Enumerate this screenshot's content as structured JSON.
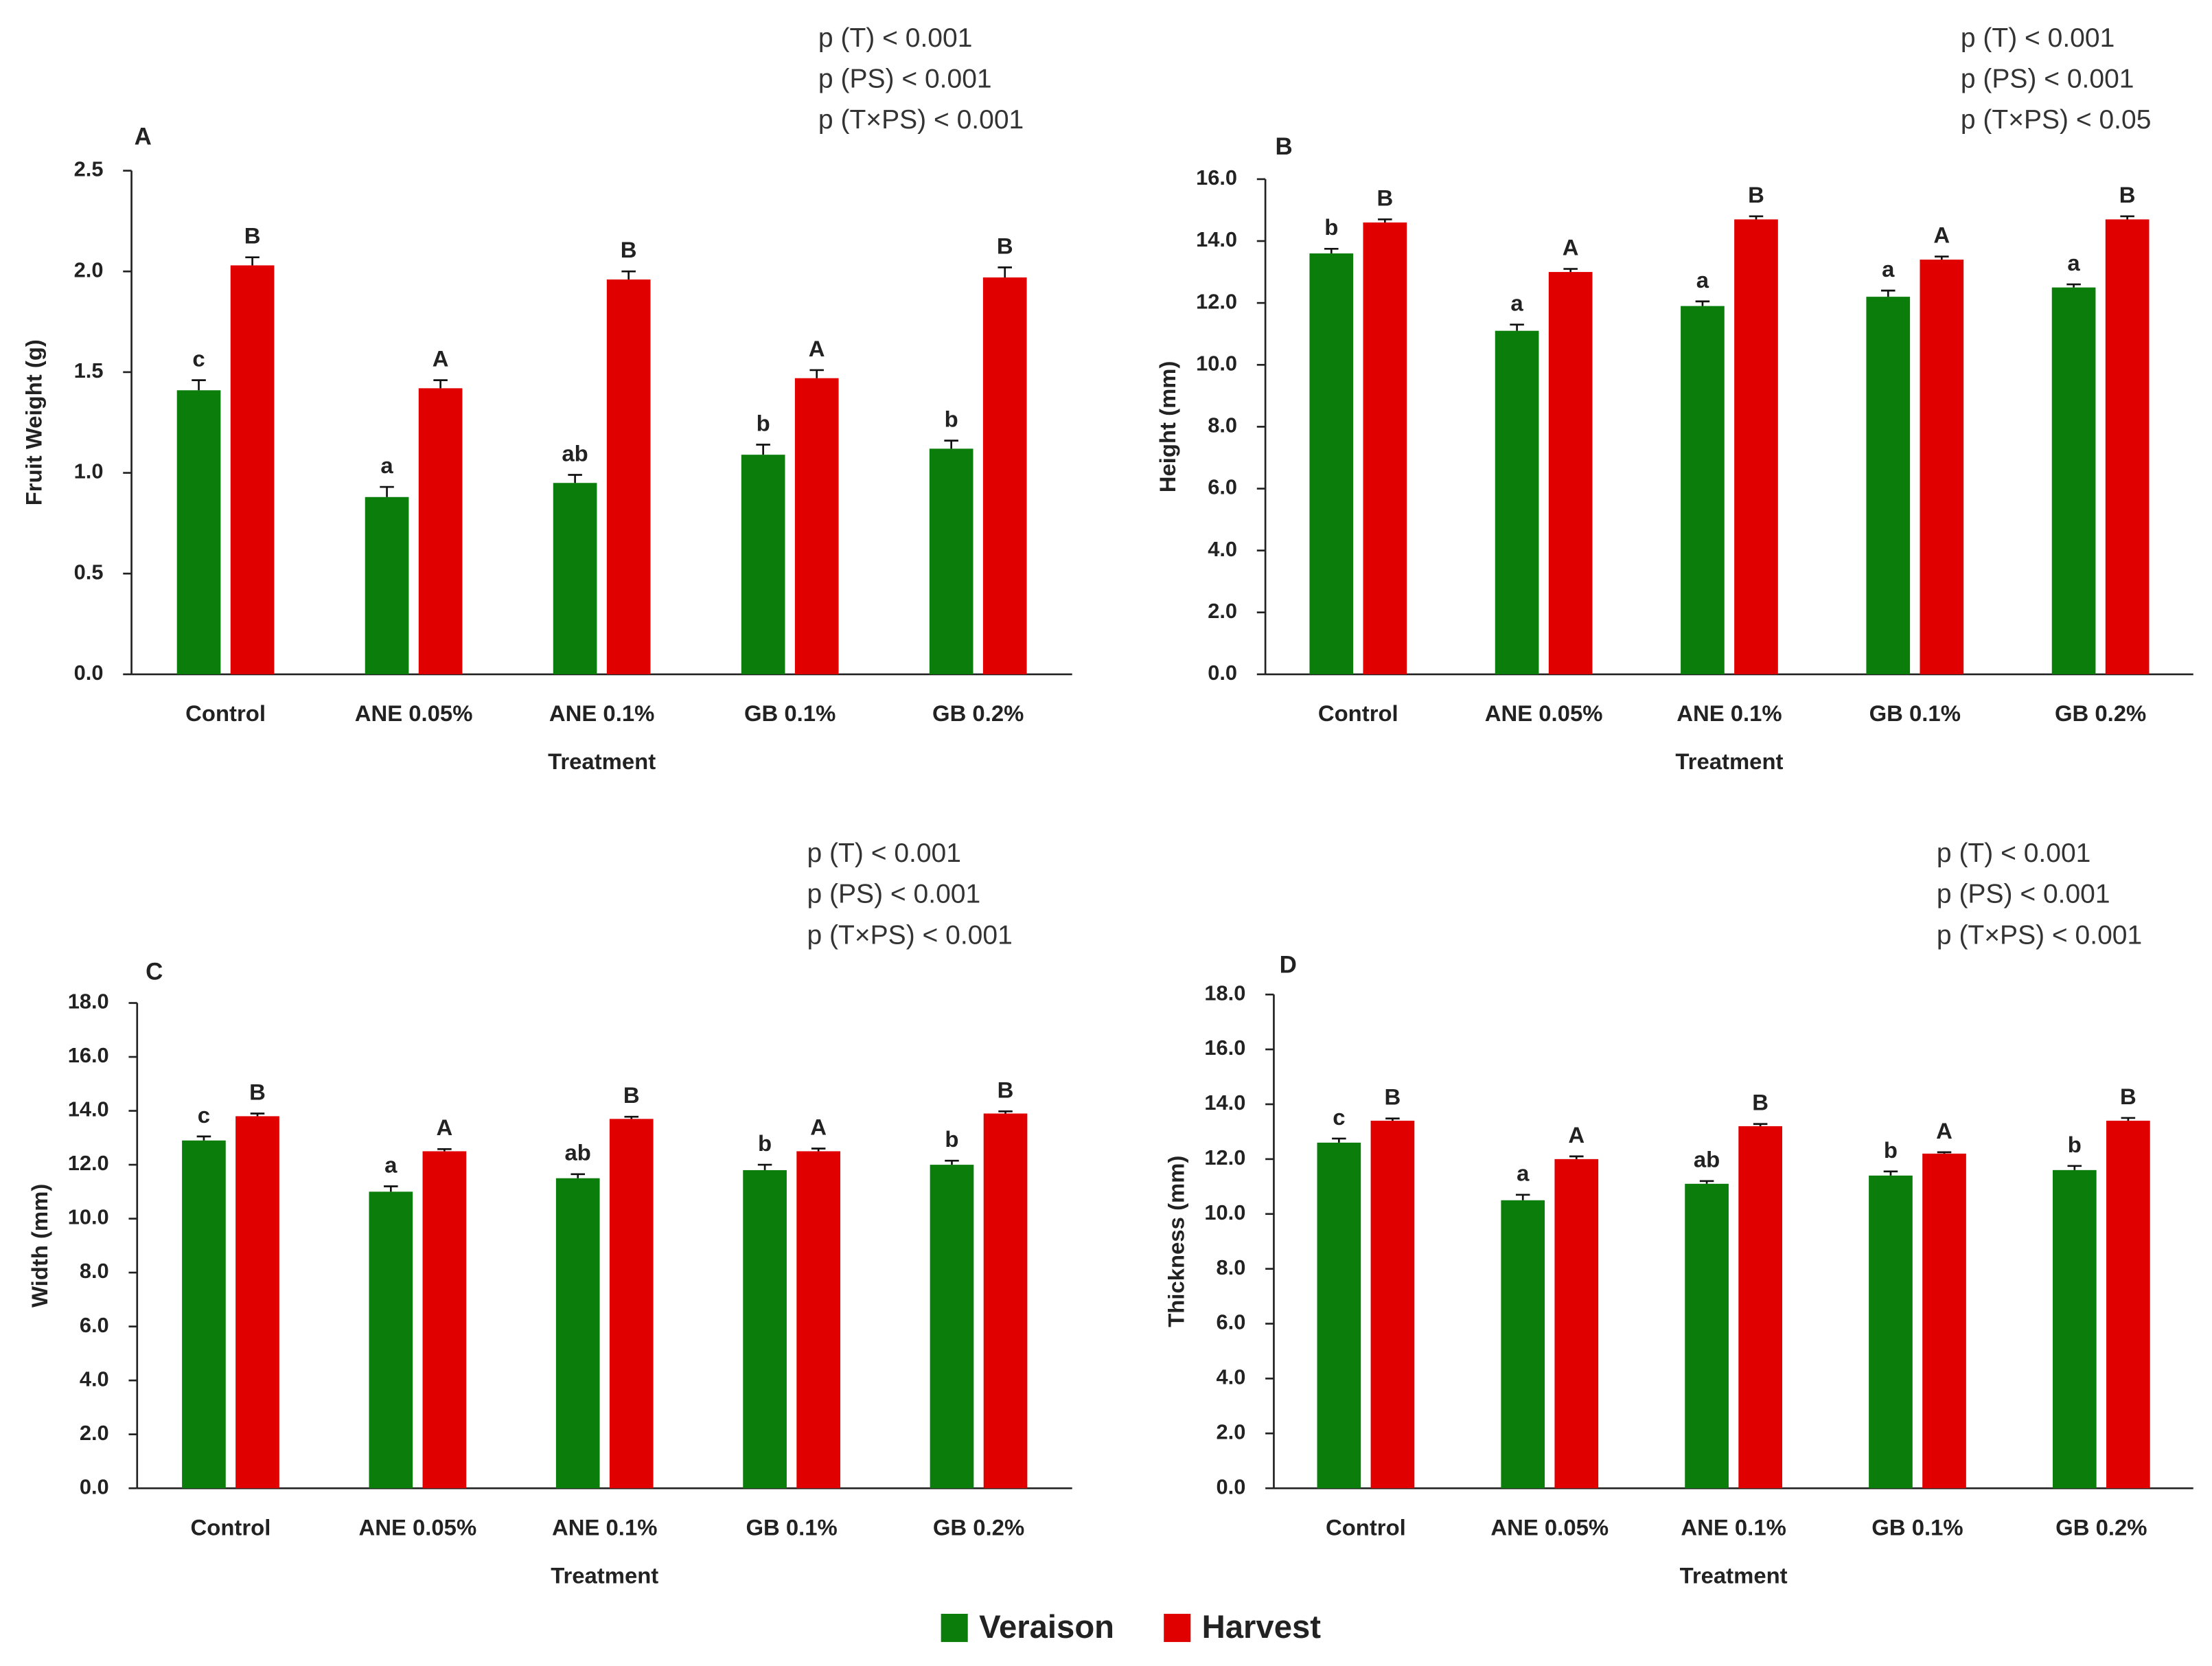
{
  "chart_data": [
    {
      "type": "bar",
      "panel_label": "A",
      "annotations": [
        "p (T) < 0.001",
        "p (PS) < 0.001",
        "p (T×PS) < 0.001"
      ],
      "y_label": "Fruit Weight (g)",
      "x_label": "Treatment",
      "categories": [
        "Control",
        "ANE 0.05%",
        "ANE 0.1%",
        "GB 0.1%",
        "GB 0.2%"
      ],
      "series": [
        {
          "name": "Veraison",
          "color": "#0b7d0b",
          "values": [
            1.41,
            0.88,
            0.95,
            1.09,
            1.12
          ],
          "errors": [
            0.05,
            0.05,
            0.04,
            0.05,
            0.04
          ],
          "letters": [
            "c",
            "a",
            "ab",
            "b",
            "b"
          ]
        },
        {
          "name": "Harvest",
          "color": "#e00000",
          "values": [
            2.03,
            1.42,
            1.96,
            1.47,
            1.97
          ],
          "errors": [
            0.04,
            0.04,
            0.04,
            0.04,
            0.05
          ],
          "letters": [
            "B",
            "A",
            "B",
            "A",
            "B"
          ]
        }
      ],
      "ylim": [
        0,
        2.5
      ],
      "yticks": [
        {
          "value": 0,
          "label": "0.0"
        },
        0.5,
        {
          "value": 1,
          "label": "1.0"
        },
        1.5,
        {
          "value": 2,
          "label": "2.0"
        },
        2.5
      ]
    },
    {
      "type": "bar",
      "panel_label": "B",
      "annotations": [
        "p (T) < 0.001",
        "p (PS) < 0.001",
        "p (T×PS) < 0.05"
      ],
      "y_label": "Height (mm)",
      "x_label": "Treatment",
      "categories": [
        "Control",
        "ANE 0.05%",
        "ANE 0.1%",
        "GB 0.1%",
        "GB 0.2%"
      ],
      "series": [
        {
          "name": "Veraison",
          "color": "#0b7d0b",
          "values": [
            13.6,
            11.1,
            11.9,
            12.2,
            12.5
          ],
          "errors": [
            0.15,
            0.2,
            0.15,
            0.2,
            0.1
          ],
          "letters": [
            "b",
            "a",
            "a",
            "a",
            "a"
          ]
        },
        {
          "name": "Harvest",
          "color": "#e00000",
          "values": [
            14.6,
            13.0,
            14.7,
            13.4,
            14.7
          ],
          "errors": [
            0.1,
            0.1,
            0.1,
            0.1,
            0.1
          ],
          "letters": [
            "B",
            "A",
            "B",
            "A",
            "B"
          ]
        }
      ],
      "ylim": [
        0,
        16
      ],
      "yticks": [
        {
          "value": 0,
          "label": "0.0"
        },
        {
          "value": 2,
          "label": "2.0"
        },
        {
          "value": 4,
          "label": "4.0"
        },
        {
          "value": 6,
          "label": "6.0"
        },
        {
          "value": 8,
          "label": "8.0"
        },
        {
          "value": 10,
          "label": "10.0"
        },
        {
          "value": 12,
          "label": "12.0"
        },
        {
          "value": 14,
          "label": "14.0"
        },
        {
          "value": 16,
          "label": "16.0"
        }
      ]
    },
    {
      "type": "bar",
      "panel_label": "C",
      "annotations": [
        "p (T) < 0.001",
        "p (PS) < 0.001",
        "p (T×PS) < 0.001"
      ],
      "y_label": "Width (mm)",
      "x_label": "Treatment",
      "categories": [
        "Control",
        "ANE 0.05%",
        "ANE 0.1%",
        "GB 0.1%",
        "GB 0.2%"
      ],
      "series": [
        {
          "name": "Veraison",
          "color": "#0b7d0b",
          "values": [
            12.9,
            11.0,
            11.5,
            11.8,
            12.0
          ],
          "errors": [
            0.15,
            0.2,
            0.15,
            0.2,
            0.15
          ],
          "letters": [
            "c",
            "a",
            "ab",
            "b",
            "b"
          ]
        },
        {
          "name": "Harvest",
          "color": "#e00000",
          "values": [
            13.8,
            12.5,
            13.7,
            12.5,
            13.9
          ],
          "errors": [
            0.1,
            0.08,
            0.08,
            0.1,
            0.08
          ],
          "letters": [
            "B",
            "A",
            "B",
            "A",
            "B"
          ]
        }
      ],
      "ylim": [
        0,
        18
      ],
      "yticks": [
        {
          "value": 0,
          "label": "0.0"
        },
        {
          "value": 2,
          "label": "2.0"
        },
        {
          "value": 4,
          "label": "4.0"
        },
        {
          "value": 6,
          "label": "6.0"
        },
        {
          "value": 8,
          "label": "8.0"
        },
        {
          "value": 10,
          "label": "10.0"
        },
        {
          "value": 12,
          "label": "12.0"
        },
        {
          "value": 14,
          "label": "14.0"
        },
        {
          "value": 16,
          "label": "16.0"
        },
        {
          "value": 18,
          "label": "18.0"
        }
      ]
    },
    {
      "type": "bar",
      "panel_label": "D",
      "annotations": [
        "p (T) < 0.001",
        "p (PS) < 0.001",
        "p (T×PS) < 0.001"
      ],
      "y_label": "Thickness (mm)",
      "x_label": "Treatment",
      "categories": [
        "Control",
        "ANE 0.05%",
        "ANE 0.1%",
        "GB 0.1%",
        "GB 0.2%"
      ],
      "series": [
        {
          "name": "Veraison",
          "color": "#0b7d0b",
          "values": [
            12.6,
            10.5,
            11.1,
            11.4,
            11.6
          ],
          "errors": [
            0.15,
            0.2,
            0.1,
            0.15,
            0.15
          ],
          "letters": [
            "c",
            "a",
            "ab",
            "b",
            "b"
          ]
        },
        {
          "name": "Harvest",
          "color": "#e00000",
          "values": [
            13.4,
            12.0,
            13.2,
            12.2,
            13.4
          ],
          "errors": [
            0.08,
            0.1,
            0.08,
            0.05,
            0.1
          ],
          "letters": [
            "B",
            "A",
            "B",
            "A",
            "B"
          ]
        }
      ],
      "ylim": [
        0,
        18
      ],
      "yticks": [
        {
          "value": 0,
          "label": "0.0"
        },
        {
          "value": 2,
          "label": "2.0"
        },
        {
          "value": 4,
          "label": "4.0"
        },
        {
          "value": 6,
          "label": "6.0"
        },
        {
          "value": 8,
          "label": "8.0"
        },
        {
          "value": 10,
          "label": "10.0"
        },
        {
          "value": 12,
          "label": "12.0"
        },
        {
          "value": 14,
          "label": "14.0"
        },
        {
          "value": 16,
          "label": "16.0"
        },
        {
          "value": 18,
          "label": "18.0"
        }
      ]
    }
  ]
}
